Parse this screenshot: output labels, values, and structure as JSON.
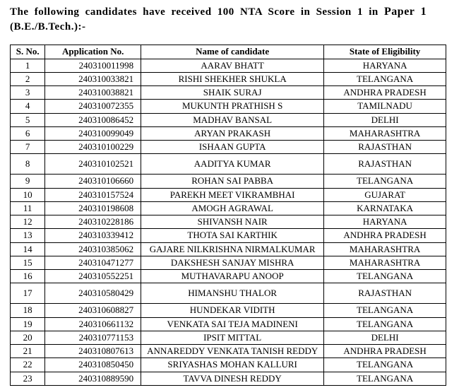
{
  "heading_line1": "The following candidates have received 100 NTA Score in Session 1 in ",
  "heading_paper": "Paper 1",
  "heading_line2": "(B.E./B.Tech.):-",
  "table": {
    "columns": [
      "S. No.",
      "Application No.",
      "Name of candidate",
      "State of Eligibility"
    ],
    "rows": [
      {
        "sno": "1",
        "app": "240310011998",
        "name": "AARAV BHATT",
        "state": "HARYANA",
        "tall": false
      },
      {
        "sno": "2",
        "app": "240310033821",
        "name": "RISHI SHEKHER SHUKLA",
        "state": "TELANGANA",
        "tall": false
      },
      {
        "sno": "3",
        "app": "240310038821",
        "name": "SHAIK SURAJ",
        "state": "ANDHRA PRADESH",
        "tall": false
      },
      {
        "sno": "4",
        "app": "240310072355",
        "name": "MUKUNTH PRATHISH S",
        "state": "TAMILNADU",
        "tall": false
      },
      {
        "sno": "5",
        "app": "240310086452",
        "name": "MADHAV BANSAL",
        "state": "DELHI",
        "tall": false
      },
      {
        "sno": "6",
        "app": "240310099049",
        "name": "ARYAN PRAKASH",
        "state": "MAHARASHTRA",
        "tall": false
      },
      {
        "sno": "7",
        "app": "240310100229",
        "name": "ISHAAN GUPTA",
        "state": "RAJASTHAN",
        "tall": false
      },
      {
        "sno": "8",
        "app": "240310102521",
        "name": "AADITYA KUMAR",
        "state": "RAJASTHAN",
        "tall": true
      },
      {
        "sno": "9",
        "app": "240310106660",
        "name": "ROHAN SAI PABBA",
        "state": "TELANGANA",
        "tall": false
      },
      {
        "sno": "10",
        "app": "240310157524",
        "name": "PAREKH MEET VIKRAMBHAI",
        "state": "GUJARAT",
        "tall": false
      },
      {
        "sno": "11",
        "app": "240310198608",
        "name": "AMOGH AGRAWAL",
        "state": "KARNATAKA",
        "tall": false
      },
      {
        "sno": "12",
        "app": "240310228186",
        "name": "SHIVANSH NAIR",
        "state": "HARYANA",
        "tall": false
      },
      {
        "sno": "13",
        "app": "240310339412",
        "name": "THOTA SAI KARTHIK",
        "state": "ANDHRA PRADESH",
        "tall": false
      },
      {
        "sno": "14",
        "app": "240310385062",
        "name": "GAJARE NILKRISHNA NIRMALKUMAR",
        "state": "MAHARASHTRA",
        "tall": false
      },
      {
        "sno": "15",
        "app": "240310471277",
        "name": "DAKSHESH SANJAY MISHRA",
        "state": "MAHARASHTRA",
        "tall": false
      },
      {
        "sno": "16",
        "app": "240310552251",
        "name": "MUTHAVARAPU ANOOP",
        "state": "TELANGANA",
        "tall": false
      },
      {
        "sno": "17",
        "app": "240310580429",
        "name": "HIMANSHU THALOR",
        "state": "RAJASTHAN",
        "tall": true
      },
      {
        "sno": "18",
        "app": "240310608827",
        "name": "HUNDEKAR VIDITH",
        "state": "TELANGANA",
        "tall": false
      },
      {
        "sno": "19",
        "app": "240310661132",
        "name": "VENKATA SAI TEJA MADINENI",
        "state": "TELANGANA",
        "tall": false
      },
      {
        "sno": "20",
        "app": "240310771153",
        "name": "IPSIT MITTAL",
        "state": "DELHI",
        "tall": false
      },
      {
        "sno": "21",
        "app": "240310807613",
        "name": "ANNAREDDY VENKATA TANISH REDDY",
        "state": "ANDHRA PRADESH",
        "tall": false
      },
      {
        "sno": "22",
        "app": "240310850450",
        "name": "SRIYASHAS MOHAN KALLURI",
        "state": "TELANGANA",
        "tall": false
      },
      {
        "sno": "23",
        "app": "240310889590",
        "name": "TAVVA DINESH REDDY",
        "state": "TELANGANA",
        "tall": false
      }
    ]
  }
}
